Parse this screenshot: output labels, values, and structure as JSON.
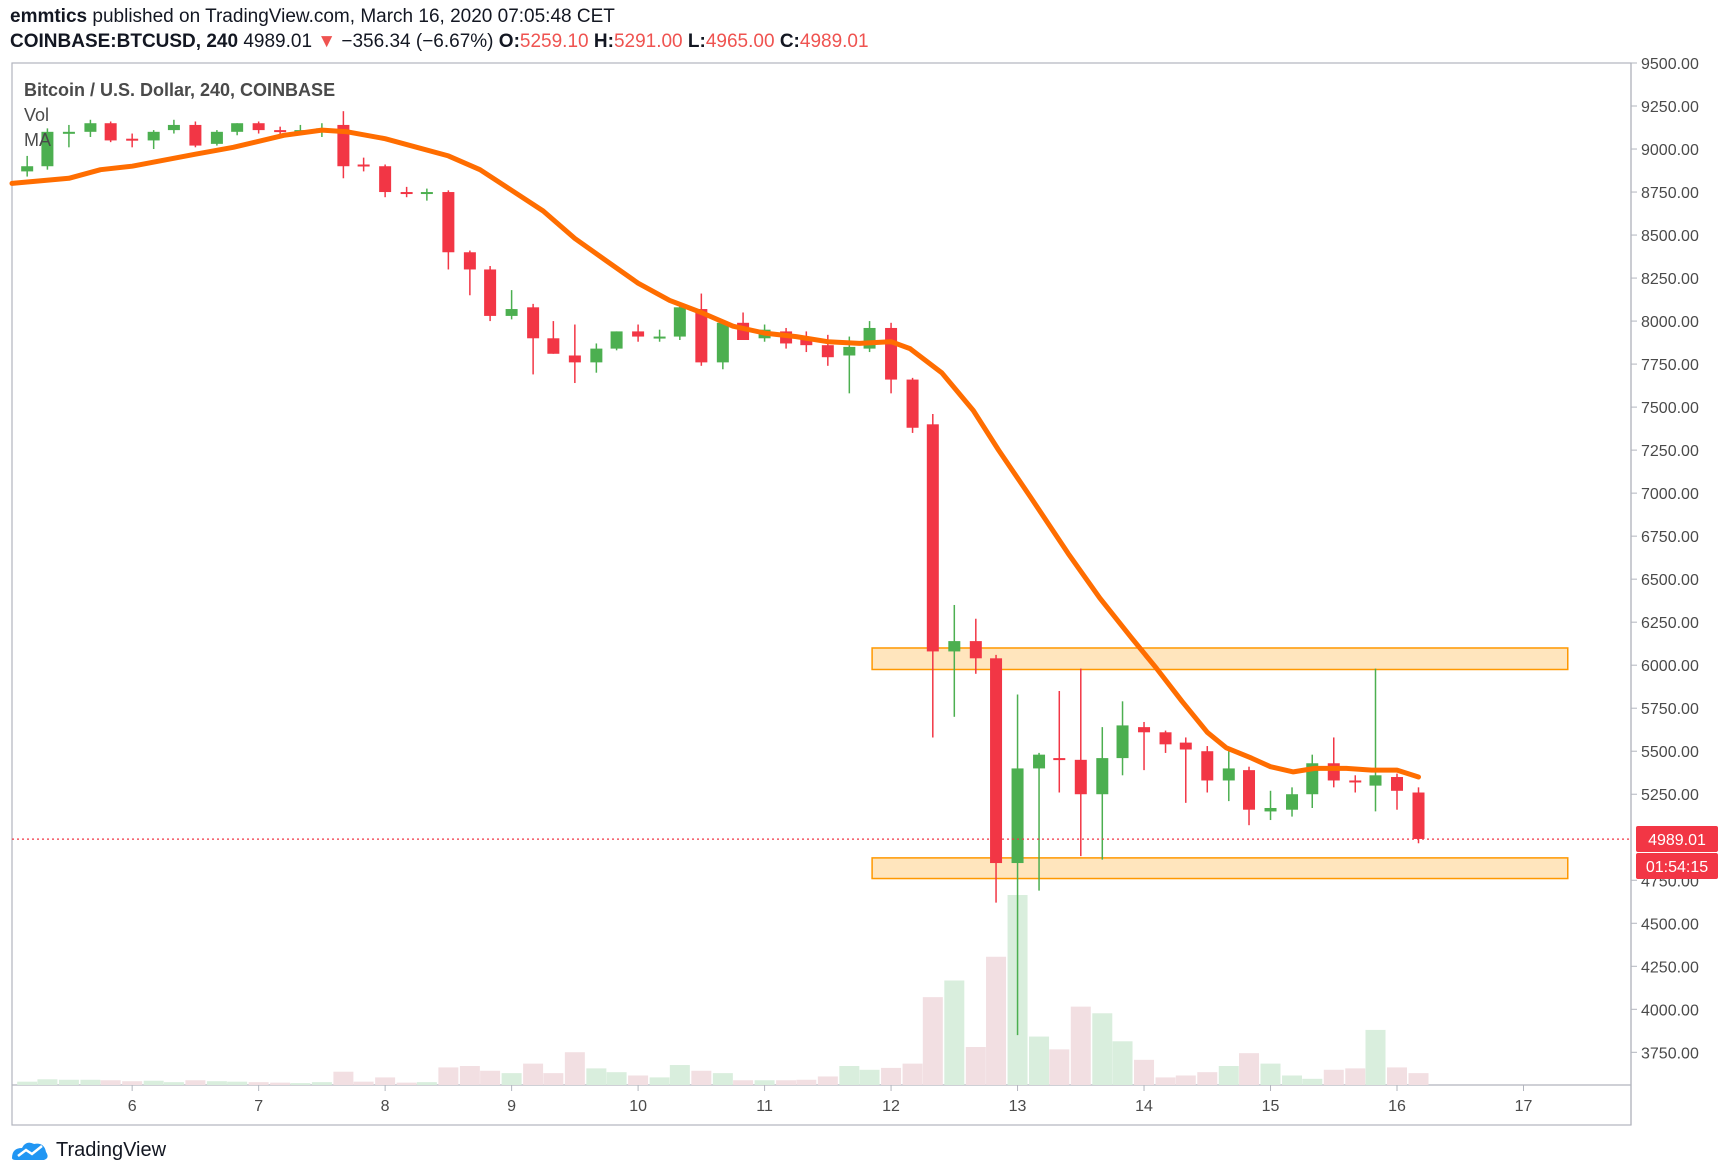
{
  "header": {
    "author": "emmtics",
    "published_text": "published on TradingView.com, March 16, 2020 07:05:48 CET",
    "symbol": "COINBASE:BTCUSD, 240",
    "last": "4989.01",
    "change": "−356.34 (−6.67%)",
    "o_label": "O:",
    "o_value": "5259.10",
    "h_label": "H:",
    "h_value": "5291.00",
    "l_label": "L:",
    "l_value": "4965.00",
    "c_label": "C:",
    "c_value": "4989.01"
  },
  "legend": {
    "title": "Bitcoin / U.S. Dollar, 240, COINBASE",
    "vol": "Vol",
    "ma": "MA"
  },
  "price_tag": "4989.01",
  "countdown_tag": "01:54:15",
  "footer": {
    "brand": "TradingView"
  },
  "colors": {
    "up": "#4caf50",
    "down": "#f23645",
    "ma": "#ff6d00",
    "zone_fill": "#ffe0b2",
    "zone_border": "#ff9800",
    "vol_up": "#d9eedd",
    "vol_down": "#f2dfe2",
    "price_line": "#f23645"
  },
  "chart_data": {
    "type": "candlestick",
    "y_ticks": [
      "9500.00",
      "9250.00",
      "9000.00",
      "8750.00",
      "8500.00",
      "8250.00",
      "8000.00",
      "7750.00",
      "7500.00",
      "7250.00",
      "7000.00",
      "6750.00",
      "6500.00",
      "6250.00",
      "6000.00",
      "5750.00",
      "5500.00",
      "5250.00",
      "4750.00",
      "4500.00",
      "4250.00",
      "4000.00",
      "3750.00"
    ],
    "y_tick_values": [
      9500,
      9250,
      9000,
      8750,
      8500,
      8250,
      8000,
      7750,
      7500,
      7250,
      7000,
      6750,
      6500,
      6250,
      6000,
      5750,
      5500,
      5250,
      4750,
      4500,
      4250,
      4000,
      3750
    ],
    "ylim": [
      3560,
      9500
    ],
    "x_ticks": [
      "6",
      "7",
      "8",
      "9",
      "10",
      "11",
      "12",
      "13",
      "14",
      "15",
      "16",
      "17"
    ],
    "x_tick_values": [
      6,
      7,
      8,
      9,
      10,
      11,
      12,
      13,
      14,
      15,
      16,
      17
    ],
    "xlim": [
      5.05,
      17.85
    ],
    "zones": [
      {
        "y_low": 5975,
        "y_high": 6100,
        "x_start": 11.85,
        "x_end": 17.35
      },
      {
        "y_low": 4760,
        "y_high": 4880,
        "x_start": 11.85,
        "x_end": 17.35
      }
    ],
    "candles": [
      {
        "x": 5.17,
        "o": 8870,
        "h": 8960,
        "l": 8840,
        "c": 8900,
        "v": 70
      },
      {
        "x": 5.33,
        "o": 8900,
        "h": 9120,
        "l": 8880,
        "c": 9100,
        "v": 120
      },
      {
        "x": 5.5,
        "o": 9100,
        "h": 9140,
        "l": 9010,
        "c": 9100,
        "v": 110
      },
      {
        "x": 5.67,
        "o": 9100,
        "h": 9170,
        "l": 9070,
        "c": 9150,
        "v": 110
      },
      {
        "x": 5.83,
        "o": 9150,
        "h": 9160,
        "l": 9040,
        "c": 9050,
        "v": 100
      },
      {
        "x": 6.0,
        "o": 9060,
        "h": 9090,
        "l": 9010,
        "c": 9050,
        "v": 80
      },
      {
        "x": 6.17,
        "o": 9050,
        "h": 9110,
        "l": 9000,
        "c": 9100,
        "v": 90
      },
      {
        "x": 6.33,
        "o": 9110,
        "h": 9170,
        "l": 9090,
        "c": 9140,
        "v": 60
      },
      {
        "x": 6.5,
        "o": 9140,
        "h": 9160,
        "l": 9010,
        "c": 9020,
        "v": 100
      },
      {
        "x": 6.67,
        "o": 9030,
        "h": 9110,
        "l": 9020,
        "c": 9100,
        "v": 80
      },
      {
        "x": 6.83,
        "o": 9100,
        "h": 9150,
        "l": 9080,
        "c": 9150,
        "v": 70
      },
      {
        "x": 7.0,
        "o": 9150,
        "h": 9160,
        "l": 9090,
        "c": 9110,
        "v": 60
      },
      {
        "x": 7.17,
        "o": 9110,
        "h": 9130,
        "l": 9070,
        "c": 9100,
        "v": 50
      },
      {
        "x": 7.33,
        "o": 9100,
        "h": 9140,
        "l": 9080,
        "c": 9110,
        "v": 40
      },
      {
        "x": 7.5,
        "o": 9100,
        "h": 9150,
        "l": 9070,
        "c": 9120,
        "v": 60
      },
      {
        "x": 7.67,
        "o": 9140,
        "h": 9220,
        "l": 8830,
        "c": 8900,
        "v": 280
      },
      {
        "x": 7.83,
        "o": 8910,
        "h": 8950,
        "l": 8870,
        "c": 8900,
        "v": 70
      },
      {
        "x": 8.0,
        "o": 8900,
        "h": 8910,
        "l": 8720,
        "c": 8750,
        "v": 160
      },
      {
        "x": 8.17,
        "o": 8750,
        "h": 8780,
        "l": 8720,
        "c": 8740,
        "v": 50
      },
      {
        "x": 8.33,
        "o": 8740,
        "h": 8770,
        "l": 8700,
        "c": 8750,
        "v": 60
      },
      {
        "x": 8.5,
        "o": 8750,
        "h": 8760,
        "l": 8300,
        "c": 8400,
        "v": 370
      },
      {
        "x": 8.67,
        "o": 8400,
        "h": 8410,
        "l": 8150,
        "c": 8300,
        "v": 400
      },
      {
        "x": 8.83,
        "o": 8300,
        "h": 8320,
        "l": 8000,
        "c": 8030,
        "v": 300
      },
      {
        "x": 9.0,
        "o": 8030,
        "h": 8180,
        "l": 8010,
        "c": 8070,
        "v": 250
      },
      {
        "x": 9.17,
        "o": 8080,
        "h": 8100,
        "l": 7690,
        "c": 7900,
        "v": 450
      },
      {
        "x": 9.33,
        "o": 7900,
        "h": 8000,
        "l": 7810,
        "c": 7810,
        "v": 250
      },
      {
        "x": 9.5,
        "o": 7800,
        "h": 7980,
        "l": 7640,
        "c": 7760,
        "v": 690
      },
      {
        "x": 9.67,
        "o": 7760,
        "h": 7870,
        "l": 7700,
        "c": 7840,
        "v": 350
      },
      {
        "x": 9.83,
        "o": 7840,
        "h": 7940,
        "l": 7830,
        "c": 7940,
        "v": 270
      },
      {
        "x": 10.0,
        "o": 7940,
        "h": 7980,
        "l": 7880,
        "c": 7910,
        "v": 200
      },
      {
        "x": 10.17,
        "o": 7910,
        "h": 7950,
        "l": 7880,
        "c": 7910,
        "v": 160
      },
      {
        "x": 10.33,
        "o": 7910,
        "h": 8100,
        "l": 7890,
        "c": 8080,
        "v": 420
      },
      {
        "x": 10.5,
        "o": 8070,
        "h": 8160,
        "l": 7740,
        "c": 7760,
        "v": 300
      },
      {
        "x": 10.67,
        "o": 7760,
        "h": 8000,
        "l": 7720,
        "c": 7990,
        "v": 250
      },
      {
        "x": 10.83,
        "o": 7990,
        "h": 8050,
        "l": 7890,
        "c": 7890,
        "v": 100
      },
      {
        "x": 11.0,
        "o": 7900,
        "h": 7980,
        "l": 7880,
        "c": 7950,
        "v": 100
      },
      {
        "x": 11.17,
        "o": 7940,
        "h": 7960,
        "l": 7840,
        "c": 7870,
        "v": 100
      },
      {
        "x": 11.33,
        "o": 7900,
        "h": 7940,
        "l": 7820,
        "c": 7860,
        "v": 110
      },
      {
        "x": 11.5,
        "o": 7860,
        "h": 7920,
        "l": 7740,
        "c": 7790,
        "v": 180
      },
      {
        "x": 11.67,
        "o": 7800,
        "h": 7910,
        "l": 7580,
        "c": 7850,
        "v": 400
      },
      {
        "x": 11.83,
        "o": 7840,
        "h": 8000,
        "l": 7820,
        "c": 7960,
        "v": 320
      },
      {
        "x": 12.0,
        "o": 7960,
        "h": 7990,
        "l": 7580,
        "c": 7660,
        "v": 360
      },
      {
        "x": 12.17,
        "o": 7660,
        "h": 7670,
        "l": 7350,
        "c": 7380,
        "v": 450
      },
      {
        "x": 12.33,
        "o": 7400,
        "h": 7460,
        "l": 5580,
        "c": 6080,
        "v": 1850
      },
      {
        "x": 12.5,
        "o": 6080,
        "h": 6350,
        "l": 5700,
        "c": 6140,
        "v": 2200
      },
      {
        "x": 12.67,
        "o": 6140,
        "h": 6270,
        "l": 5950,
        "c": 6040,
        "v": 800
      },
      {
        "x": 12.83,
        "o": 6040,
        "h": 6060,
        "l": 4620,
        "c": 4850,
        "v": 2700
      },
      {
        "x": 13.0,
        "o": 4850,
        "h": 5830,
        "l": 3850,
        "c": 5400,
        "v": 4000
      },
      {
        "x": 13.17,
        "o": 5400,
        "h": 5490,
        "l": 4690,
        "c": 5480,
        "v": 1020
      },
      {
        "x": 13.33,
        "o": 5460,
        "h": 5850,
        "l": 5260,
        "c": 5450,
        "v": 750
      },
      {
        "x": 13.5,
        "o": 5450,
        "h": 5980,
        "l": 4890,
        "c": 5250,
        "v": 1650
      },
      {
        "x": 13.67,
        "o": 5250,
        "h": 5640,
        "l": 4870,
        "c": 5460,
        "v": 1510
      },
      {
        "x": 13.83,
        "o": 5460,
        "h": 5790,
        "l": 5360,
        "c": 5650,
        "v": 920
      },
      {
        "x": 14.0,
        "o": 5640,
        "h": 5670,
        "l": 5390,
        "c": 5610,
        "v": 530
      },
      {
        "x": 14.17,
        "o": 5610,
        "h": 5620,
        "l": 5490,
        "c": 5540,
        "v": 160
      },
      {
        "x": 14.33,
        "o": 5550,
        "h": 5580,
        "l": 5200,
        "c": 5510,
        "v": 200
      },
      {
        "x": 14.5,
        "o": 5500,
        "h": 5530,
        "l": 5260,
        "c": 5330,
        "v": 270
      },
      {
        "x": 14.67,
        "o": 5330,
        "h": 5500,
        "l": 5210,
        "c": 5400,
        "v": 400
      },
      {
        "x": 14.83,
        "o": 5390,
        "h": 5410,
        "l": 5070,
        "c": 5160,
        "v": 670
      },
      {
        "x": 15.0,
        "o": 5150,
        "h": 5270,
        "l": 5100,
        "c": 5170,
        "v": 450
      },
      {
        "x": 15.17,
        "o": 5160,
        "h": 5290,
        "l": 5120,
        "c": 5250,
        "v": 200
      },
      {
        "x": 15.33,
        "o": 5250,
        "h": 5480,
        "l": 5170,
        "c": 5430,
        "v": 130
      },
      {
        "x": 15.5,
        "o": 5430,
        "h": 5580,
        "l": 5290,
        "c": 5330,
        "v": 320
      },
      {
        "x": 15.67,
        "o": 5330,
        "h": 5360,
        "l": 5260,
        "c": 5320,
        "v": 350
      },
      {
        "x": 15.83,
        "o": 5300,
        "h": 5980,
        "l": 5150,
        "c": 5360,
        "v": 1160
      },
      {
        "x": 16.0,
        "o": 5350,
        "h": 5370,
        "l": 5160,
        "c": 5270,
        "v": 370
      },
      {
        "x": 16.17,
        "o": 5260,
        "h": 5290,
        "l": 4965,
        "c": 4990,
        "v": 250
      }
    ],
    "ma": [
      {
        "x": 5.05,
        "y": 8800
      },
      {
        "x": 5.5,
        "y": 8830
      },
      {
        "x": 5.75,
        "y": 8880
      },
      {
        "x": 6.0,
        "y": 8900
      },
      {
        "x": 6.5,
        "y": 8970
      },
      {
        "x": 6.8,
        "y": 9010
      },
      {
        "x": 7.2,
        "y": 9080
      },
      {
        "x": 7.5,
        "y": 9110
      },
      {
        "x": 7.7,
        "y": 9100
      },
      {
        "x": 8.0,
        "y": 9060
      },
      {
        "x": 8.25,
        "y": 9010
      },
      {
        "x": 8.5,
        "y": 8960
      },
      {
        "x": 8.75,
        "y": 8880
      },
      {
        "x": 9.0,
        "y": 8760
      },
      {
        "x": 9.25,
        "y": 8640
      },
      {
        "x": 9.5,
        "y": 8480
      },
      {
        "x": 9.75,
        "y": 8350
      },
      {
        "x": 10.0,
        "y": 8220
      },
      {
        "x": 10.25,
        "y": 8120
      },
      {
        "x": 10.5,
        "y": 8050
      },
      {
        "x": 10.75,
        "y": 7970
      },
      {
        "x": 11.0,
        "y": 7930
      },
      {
        "x": 11.25,
        "y": 7910
      },
      {
        "x": 11.5,
        "y": 7880
      },
      {
        "x": 11.75,
        "y": 7870
      },
      {
        "x": 12.0,
        "y": 7880
      },
      {
        "x": 12.15,
        "y": 7840
      },
      {
        "x": 12.4,
        "y": 7700
      },
      {
        "x": 12.65,
        "y": 7480
      },
      {
        "x": 12.85,
        "y": 7250
      },
      {
        "x": 13.1,
        "y": 6980
      },
      {
        "x": 13.4,
        "y": 6650
      },
      {
        "x": 13.65,
        "y": 6390
      },
      {
        "x": 13.9,
        "y": 6160
      },
      {
        "x": 14.1,
        "y": 5980
      },
      {
        "x": 14.3,
        "y": 5790
      },
      {
        "x": 14.5,
        "y": 5610
      },
      {
        "x": 14.65,
        "y": 5520
      },
      {
        "x": 14.85,
        "y": 5460
      },
      {
        "x": 15.0,
        "y": 5410
      },
      {
        "x": 15.18,
        "y": 5380
      },
      {
        "x": 15.35,
        "y": 5400
      },
      {
        "x": 15.6,
        "y": 5400
      },
      {
        "x": 15.8,
        "y": 5390
      },
      {
        "x": 16.0,
        "y": 5390
      },
      {
        "x": 16.17,
        "y": 5350
      }
    ],
    "last_price": 4989.01
  }
}
